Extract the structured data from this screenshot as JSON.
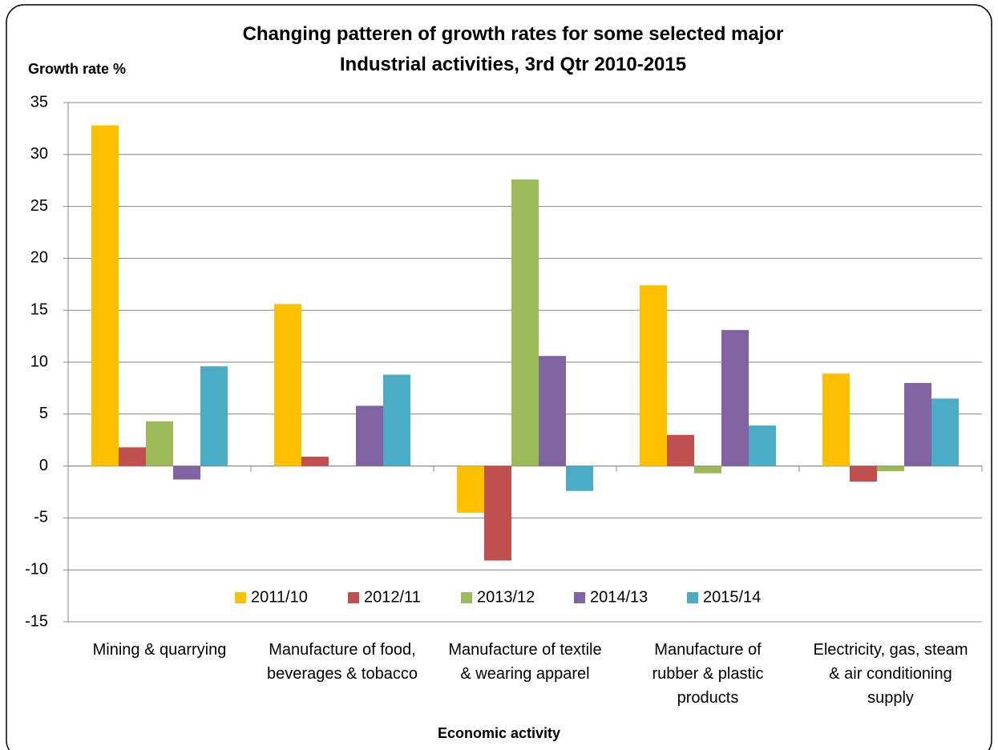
{
  "chart_data": {
    "type": "bar",
    "title": "Changing patteren of growth rates for some selected major Industrial activities, 3rd Qtr 2010-2015",
    "y_label": "Growth rate %",
    "x_label": "Economic activity",
    "categories": [
      "Mining & quarrying",
      "Manufacture of food, beverages & tobacco",
      "Manufacture of textile & wearing apparel",
      "Manufacture of rubber & plastic products",
      "Electricity, gas, steam & air conditioning supply"
    ],
    "series": [
      {
        "name": "2011/10",
        "color": "#ffc000",
        "values": [
          32.8,
          15.6,
          -4.5,
          17.4,
          8.9
        ]
      },
      {
        "name": "2012/11",
        "color": "#c0504d",
        "values": [
          1.8,
          0.9,
          -9.1,
          3.0,
          -1.5
        ]
      },
      {
        "name": "2013/12",
        "color": "#9bbb59",
        "values": [
          4.3,
          0,
          27.6,
          -0.7,
          -0.5
        ]
      },
      {
        "name": "2014/13",
        "color": "#8064a2",
        "values": [
          -1.3,
          5.8,
          10.6,
          13.1,
          8.0
        ]
      },
      {
        "name": "2015/14",
        "color": "#4bacc6",
        "values": [
          9.6,
          8.8,
          -2.4,
          3.9,
          6.5
        ]
      }
    ],
    "ylim": [
      -15,
      35
    ],
    "yticks": [
      -15,
      -10,
      -5,
      0,
      5,
      10,
      15,
      20,
      25,
      30,
      35
    ],
    "grid": true,
    "legend": "bottom"
  }
}
